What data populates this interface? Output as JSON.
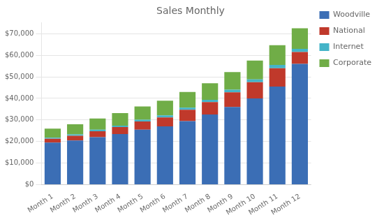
{
  "chart_data": {
    "type": "bar",
    "title": "Sales Monthly",
    "categories": [
      "Month 1",
      "Month 2",
      "Month 3",
      "Month 4",
      "Month 5",
      "Month 6",
      "Month 7",
      "Month 8",
      "Month 9",
      "Month 10",
      "Month 11",
      "Month 12"
    ],
    "series": [
      {
        "name": "Woodville",
        "color": "#3B6EB5",
        "values": [
          19500,
          20500,
          22000,
          23500,
          25500,
          27000,
          29500,
          32500,
          36000,
          40000,
          45500,
          56000
        ]
      },
      {
        "name": "National",
        "color": "#C0392B",
        "values": [
          1800,
          2200,
          2800,
          3200,
          3800,
          4200,
          5200,
          5800,
          6800,
          7500,
          8500,
          5500
        ]
      },
      {
        "name": "Internet",
        "color": "#44B4C8",
        "values": [
          500,
          600,
          700,
          700,
          800,
          900,
          1000,
          1000,
          1200,
          1300,
          1500,
          1500
        ]
      },
      {
        "name": "Corporate",
        "color": "#70AD47",
        "values": [
          4200,
          4700,
          5200,
          5800,
          6200,
          6800,
          7300,
          7700,
          8200,
          8700,
          9200,
          9500
        ]
      }
    ],
    "stacked": true,
    "ylim": [
      0,
      75000
    ],
    "yticks": [
      {
        "value": 0,
        "label": "$0"
      },
      {
        "value": 10000,
        "label": "$10,000"
      },
      {
        "value": 20000,
        "label": "$20,000"
      },
      {
        "value": 30000,
        "label": "$30,000"
      },
      {
        "value": 40000,
        "label": "$40,000"
      },
      {
        "value": 50000,
        "label": "$50,000"
      },
      {
        "value": 60000,
        "label": "$60,000"
      },
      {
        "value": 70000,
        "label": "$70,000"
      }
    ],
    "grid": true,
    "legend": "right"
  }
}
